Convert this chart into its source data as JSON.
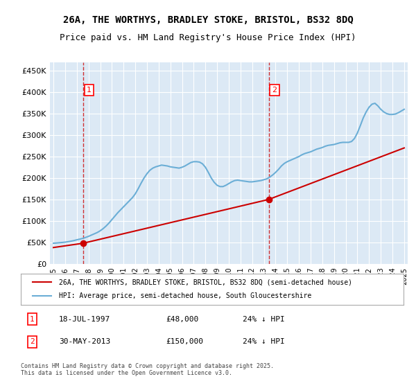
{
  "title_line1": "26A, THE WORTHYS, BRADLEY STOKE, BRISTOL, BS32 8DQ",
  "title_line2": "Price paid vs. HM Land Registry's House Price Index (HPI)",
  "ylabel": "",
  "background_color": "#dce9f5",
  "plot_bg_color": "#dce9f5",
  "fig_bg_color": "#ffffff",
  "hpi_color": "#6baed6",
  "price_color": "#cc0000",
  "dashed_line_color": "#cc0000",
  "ylim": [
    0,
    470000
  ],
  "yticks": [
    0,
    50000,
    100000,
    150000,
    200000,
    250000,
    300000,
    350000,
    400000,
    450000
  ],
  "ytick_labels": [
    "£0",
    "£50K",
    "£100K",
    "£150K",
    "£200K",
    "£250K",
    "£300K",
    "£350K",
    "£400K",
    "£450K"
  ],
  "sale1_date_x": 1997.54,
  "sale1_price": 48000,
  "sale1_label": "1",
  "sale2_date_x": 2013.41,
  "sale2_price": 150000,
  "sale2_label": "2",
  "legend_label_red": "26A, THE WORTHYS, BRADLEY STOKE, BRISTOL, BS32 8DQ (semi-detached house)",
  "legend_label_blue": "HPI: Average price, semi-detached house, South Gloucestershire",
  "annotation1_date": "18-JUL-1997",
  "annotation1_price": "£48,000",
  "annotation1_hpi": "24% ↓ HPI",
  "annotation2_date": "30-MAY-2013",
  "annotation2_price": "£150,000",
  "annotation2_hpi": "24% ↓ HPI",
  "footnote": "Contains HM Land Registry data © Crown copyright and database right 2025.\nThis data is licensed under the Open Government Licence v3.0.",
  "hpi_data_x": [
    1995.0,
    1995.25,
    1995.5,
    1995.75,
    1996.0,
    1996.25,
    1996.5,
    1996.75,
    1997.0,
    1997.25,
    1997.5,
    1997.75,
    1998.0,
    1998.25,
    1998.5,
    1998.75,
    1999.0,
    1999.25,
    1999.5,
    1999.75,
    2000.0,
    2000.25,
    2000.5,
    2000.75,
    2001.0,
    2001.25,
    2001.5,
    2001.75,
    2002.0,
    2002.25,
    2002.5,
    2002.75,
    2003.0,
    2003.25,
    2003.5,
    2003.75,
    2004.0,
    2004.25,
    2004.5,
    2004.75,
    2005.0,
    2005.25,
    2005.5,
    2005.75,
    2006.0,
    2006.25,
    2006.5,
    2006.75,
    2007.0,
    2007.25,
    2007.5,
    2007.75,
    2008.0,
    2008.25,
    2008.5,
    2008.75,
    2009.0,
    2009.25,
    2009.5,
    2009.75,
    2010.0,
    2010.25,
    2010.5,
    2010.75,
    2011.0,
    2011.25,
    2011.5,
    2011.75,
    2012.0,
    2012.25,
    2012.5,
    2012.75,
    2013.0,
    2013.25,
    2013.5,
    2013.75,
    2014.0,
    2014.25,
    2014.5,
    2014.75,
    2015.0,
    2015.25,
    2015.5,
    2015.75,
    2016.0,
    2016.25,
    2016.5,
    2016.75,
    2017.0,
    2017.25,
    2017.5,
    2017.75,
    2018.0,
    2018.25,
    2018.5,
    2018.75,
    2019.0,
    2019.25,
    2019.5,
    2019.75,
    2020.0,
    2020.25,
    2020.5,
    2020.75,
    2021.0,
    2021.25,
    2021.5,
    2021.75,
    2022.0,
    2022.25,
    2022.5,
    2022.75,
    2023.0,
    2023.25,
    2023.5,
    2023.75,
    2024.0,
    2024.25,
    2024.5,
    2024.75,
    2025.0
  ],
  "hpi_data_y": [
    48000,
    48500,
    49200,
    49800,
    50500,
    51500,
    52800,
    54200,
    56000,
    57500,
    59200,
    61500,
    64000,
    67000,
    70000,
    73000,
    77000,
    82000,
    88000,
    95000,
    103000,
    111000,
    119000,
    126000,
    133000,
    140000,
    147000,
    154000,
    163000,
    175000,
    188000,
    200000,
    210000,
    218000,
    223000,
    226000,
    228000,
    230000,
    229000,
    228000,
    226000,
    225000,
    224000,
    223000,
    225000,
    228000,
    232000,
    236000,
    238000,
    238000,
    237000,
    233000,
    225000,
    213000,
    200000,
    190000,
    183000,
    180000,
    180000,
    183000,
    187000,
    191000,
    194000,
    195000,
    194000,
    193000,
    192000,
    191000,
    191000,
    192000,
    193000,
    194000,
    196000,
    198000,
    202000,
    207000,
    213000,
    220000,
    228000,
    234000,
    238000,
    241000,
    244000,
    247000,
    250000,
    254000,
    257000,
    259000,
    261000,
    264000,
    267000,
    269000,
    271000,
    274000,
    276000,
    277000,
    278000,
    280000,
    282000,
    283000,
    283000,
    283000,
    285000,
    292000,
    305000,
    322000,
    340000,
    354000,
    365000,
    372000,
    374000,
    368000,
    360000,
    354000,
    350000,
    348000,
    348000,
    349000,
    352000,
    356000,
    360000
  ],
  "price_data_x": [
    1995.0,
    1997.54,
    2013.41,
    2025.0
  ],
  "price_data_y": [
    38000,
    48000,
    150000,
    270000
  ],
  "xtick_years": [
    1995,
    1996,
    1997,
    1998,
    1999,
    2000,
    2001,
    2002,
    2003,
    2004,
    2005,
    2006,
    2007,
    2008,
    2009,
    2010,
    2011,
    2012,
    2013,
    2014,
    2015,
    2016,
    2017,
    2018,
    2019,
    2020,
    2021,
    2022,
    2023,
    2024,
    2025
  ]
}
